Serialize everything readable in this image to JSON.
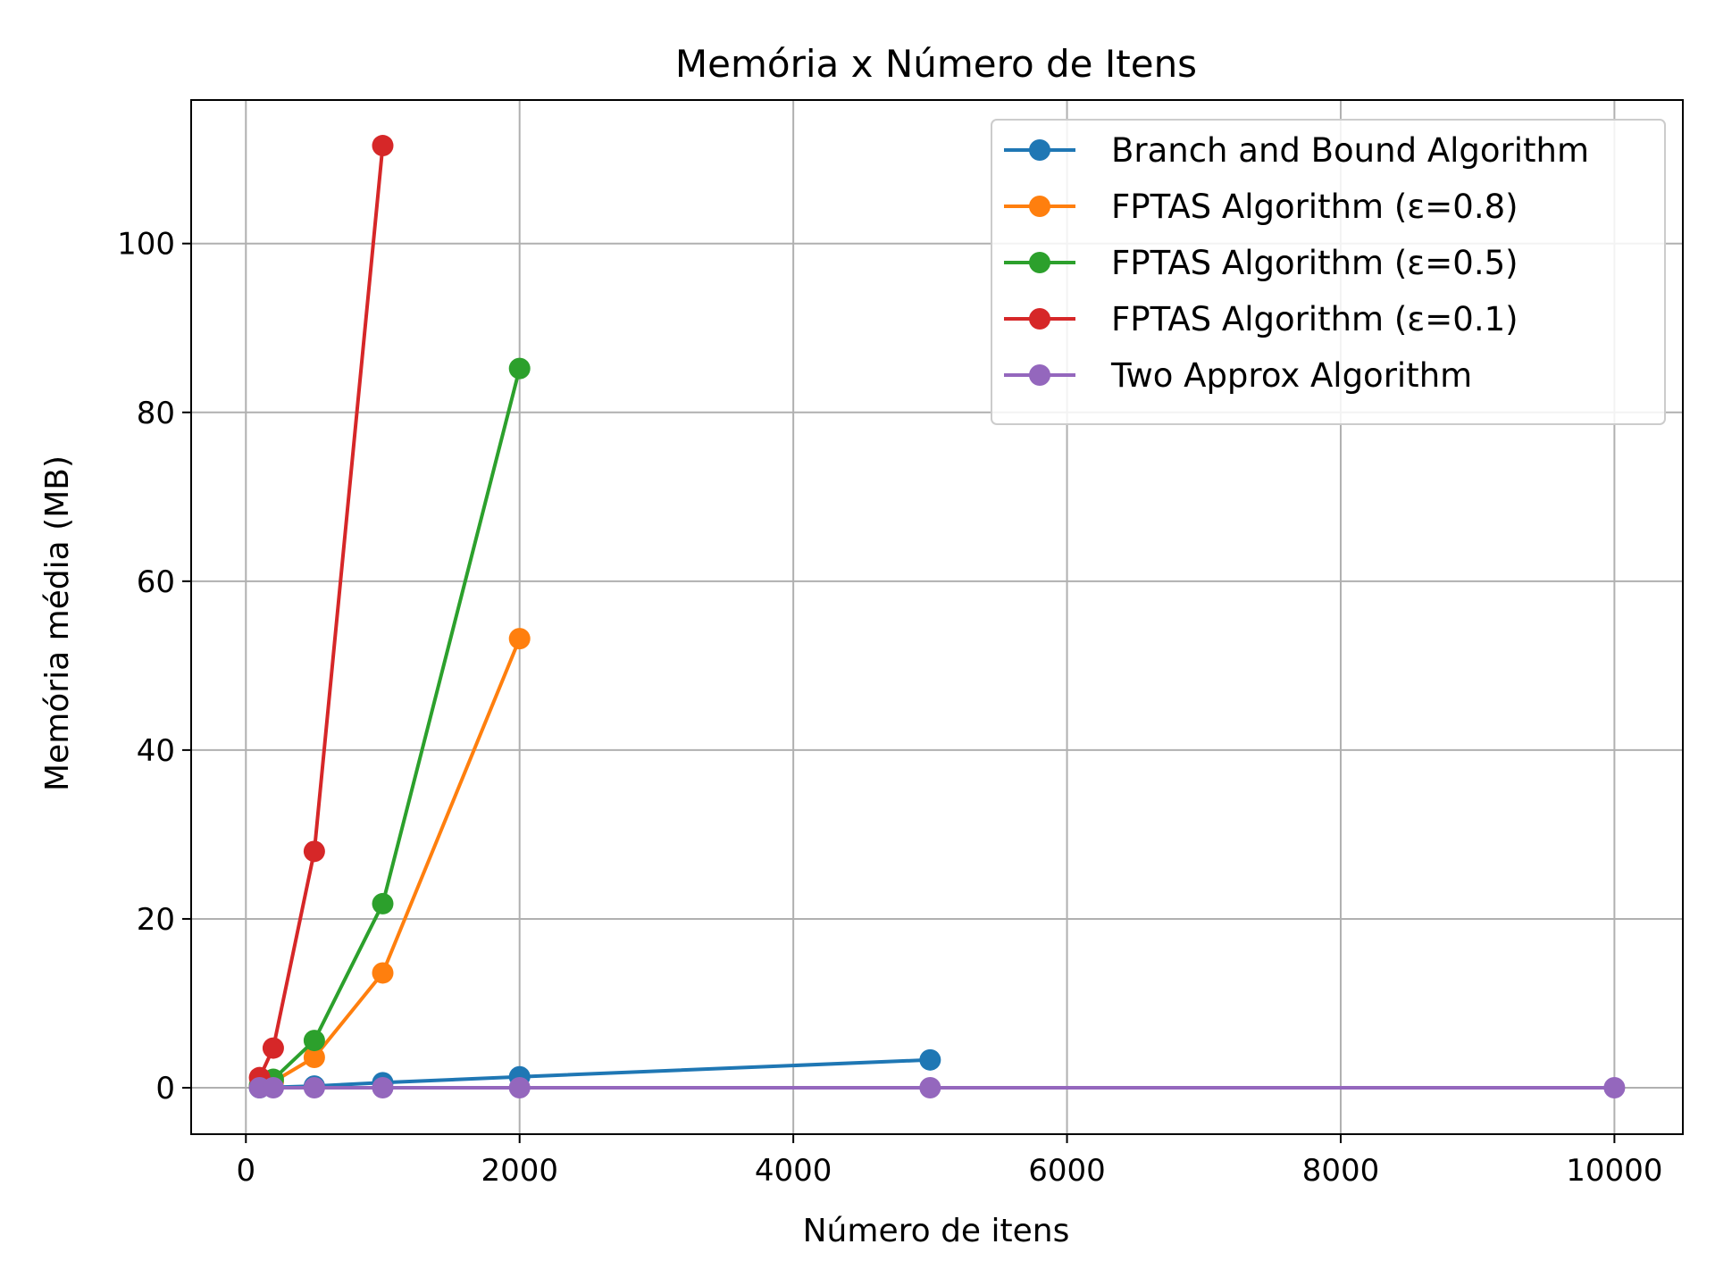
{
  "chart_data": {
    "type": "line",
    "title": "Memória x Número de Itens",
    "xlabel": "Número de itens",
    "ylabel": "Memória média (MB)",
    "xlim": [
      -400,
      10500
    ],
    "ylim": [
      -5.5,
      117
    ],
    "xticks": [
      0,
      2000,
      4000,
      6000,
      8000,
      10000
    ],
    "xtick_labels": [
      "0",
      "2000",
      "4000",
      "6000",
      "8000",
      "10000"
    ],
    "yticks": [
      0,
      20,
      40,
      60,
      80,
      100
    ],
    "ytick_labels": [
      "0",
      "20",
      "40",
      "60",
      "80",
      "100"
    ],
    "grid": true,
    "legend_position": "top-right",
    "series": [
      {
        "name": "Branch and Bound Algorithm",
        "color": "#1f77b4",
        "marker": "circle",
        "x": [
          100,
          200,
          500,
          1000,
          2000,
          5000
        ],
        "y": [
          0.0,
          0.05,
          0.2,
          0.6,
          1.3,
          3.3
        ]
      },
      {
        "name": "FPTAS Algorithm (ε=0.8)",
        "color": "#ff7f0e",
        "marker": "circle",
        "x": [
          100,
          200,
          500,
          1000,
          2000
        ],
        "y": [
          0.2,
          0.7,
          3.6,
          13.6,
          53.2
        ]
      },
      {
        "name": "FPTAS Algorithm (ε=0.5)",
        "color": "#2ca02c",
        "marker": "circle",
        "x": [
          100,
          200,
          500,
          1000,
          2000
        ],
        "y": [
          0.3,
          1.0,
          5.6,
          21.8,
          85.2
        ]
      },
      {
        "name": "FPTAS Algorithm (ε=0.1)",
        "color": "#d62728",
        "marker": "circle",
        "x": [
          100,
          200,
          500,
          1000
        ],
        "y": [
          1.2,
          4.7,
          28.0,
          111.6
        ]
      },
      {
        "name": "Two Approx Algorithm",
        "color": "#9467bd",
        "marker": "circle",
        "x": [
          100,
          200,
          500,
          1000,
          2000,
          5000,
          10000
        ],
        "y": [
          0.0,
          0.0,
          0.0,
          0.0,
          0.0,
          0.0,
          0.0
        ]
      }
    ]
  }
}
